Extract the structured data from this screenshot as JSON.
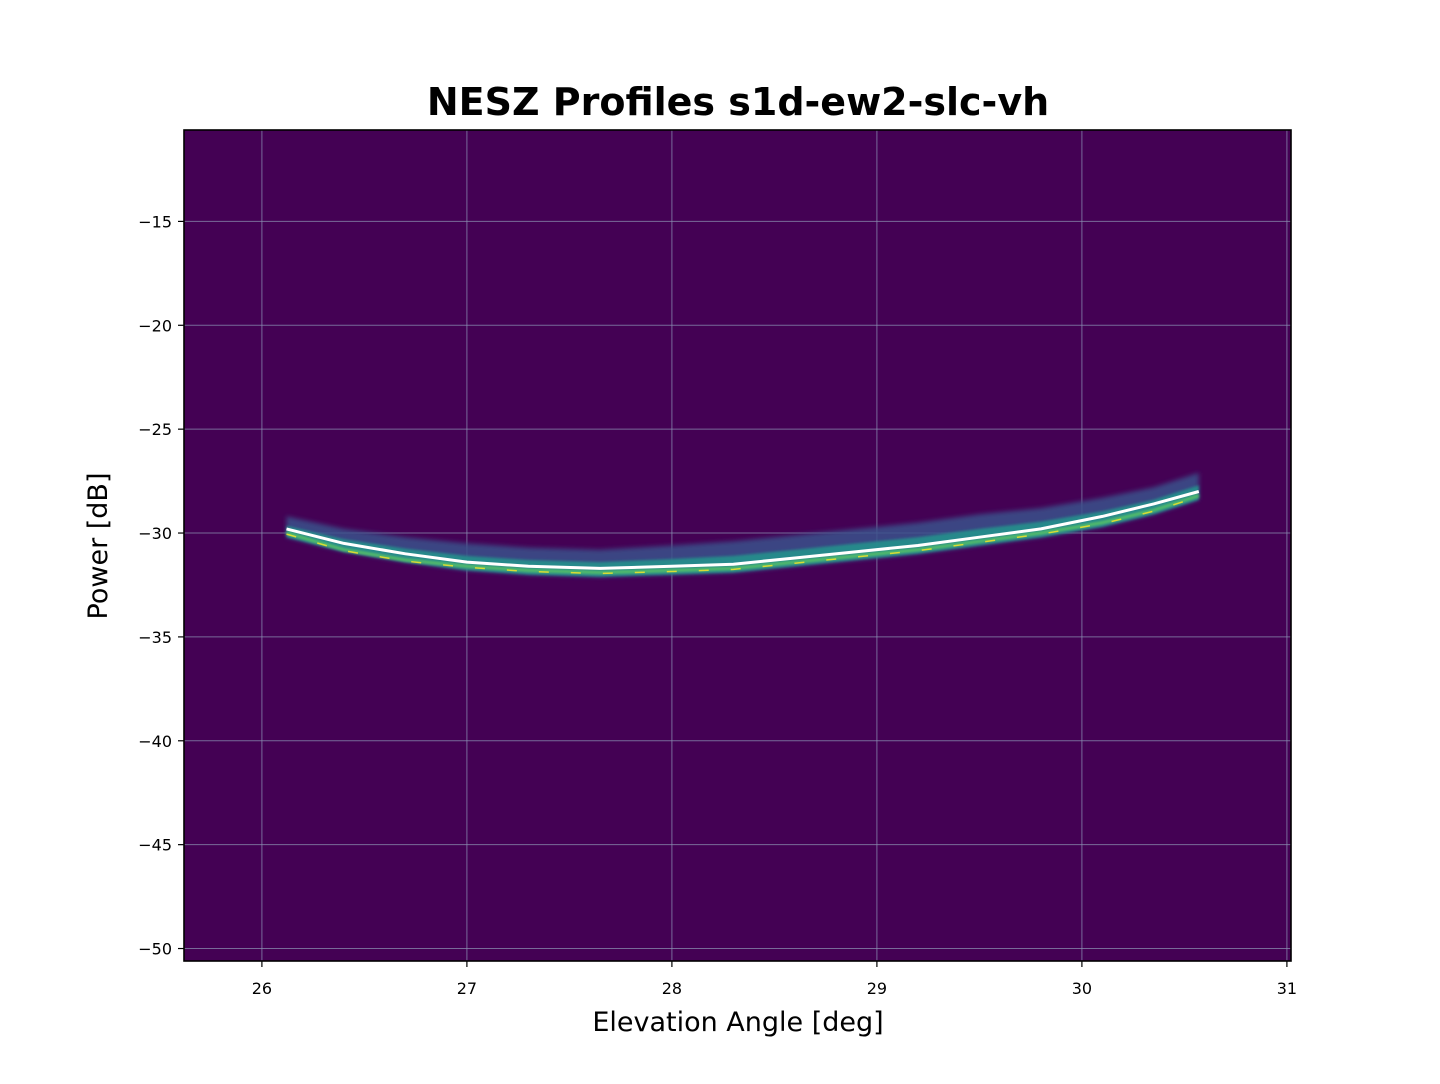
{
  "chart_data": {
    "type": "heatmap",
    "title": "NESZ Profiles s1d-ew2-slc-vh",
    "xlabel": "Elevation Angle [deg]",
    "ylabel": "Power [dB]",
    "xlim": [
      25.62,
      31.02
    ],
    "ylim": [
      -50.6,
      -10.6
    ],
    "x_ticks": [
      26,
      27,
      28,
      29,
      30,
      31
    ],
    "y_ticks": [
      -15,
      -20,
      -25,
      -30,
      -35,
      -40,
      -45,
      -50
    ],
    "x_tick_labels": [
      "26",
      "27",
      "28",
      "29",
      "30",
      "31"
    ],
    "y_tick_labels": [
      "−15",
      "−20",
      "−25",
      "−30",
      "−35",
      "−40",
      "−45",
      "−50"
    ],
    "grid": true,
    "colormap": "viridis",
    "colors": {
      "background": "#440154",
      "grid": "#8a8fb0",
      "mean_line": "#ffffff",
      "low_density": "#3b528b",
      "mid_density": "#21918c",
      "high_density": "#5ec962",
      "peak_density": "#fde725"
    },
    "mean_profile": {
      "x": [
        26.12,
        26.4,
        26.7,
        27.0,
        27.3,
        27.65,
        28.0,
        28.3,
        28.6,
        28.9,
        29.2,
        29.5,
        29.8,
        30.1,
        30.35,
        30.57
      ],
      "y": [
        -29.8,
        -30.5,
        -31.0,
        -31.4,
        -31.6,
        -31.7,
        -31.6,
        -31.5,
        -31.2,
        -30.9,
        -30.6,
        -30.2,
        -29.8,
        -29.2,
        -28.6,
        -28.0
      ]
    },
    "density_band": {
      "x": [
        26.12,
        26.4,
        26.7,
        27.0,
        27.3,
        27.65,
        28.0,
        28.3,
        28.6,
        28.9,
        29.2,
        29.5,
        29.8,
        30.1,
        30.35,
        30.57
      ],
      "lower": [
        -30.2,
        -30.9,
        -31.4,
        -31.8,
        -32.0,
        -32.1,
        -32.0,
        -31.9,
        -31.6,
        -31.3,
        -31.0,
        -30.6,
        -30.2,
        -29.7,
        -29.1,
        -28.4
      ],
      "upper": [
        -29.2,
        -29.8,
        -30.2,
        -30.5,
        -30.7,
        -30.8,
        -30.6,
        -30.4,
        -30.1,
        -29.8,
        -29.5,
        -29.1,
        -28.8,
        -28.3,
        -27.8,
        -27.1
      ],
      "peak_y": [
        -30.0,
        -30.8,
        -31.3,
        -31.6,
        -31.8,
        -31.9,
        -31.8,
        -31.7,
        -31.4,
        -31.1,
        -30.8,
        -30.4,
        -30.0,
        -29.5,
        -28.9,
        -28.2
      ]
    }
  }
}
